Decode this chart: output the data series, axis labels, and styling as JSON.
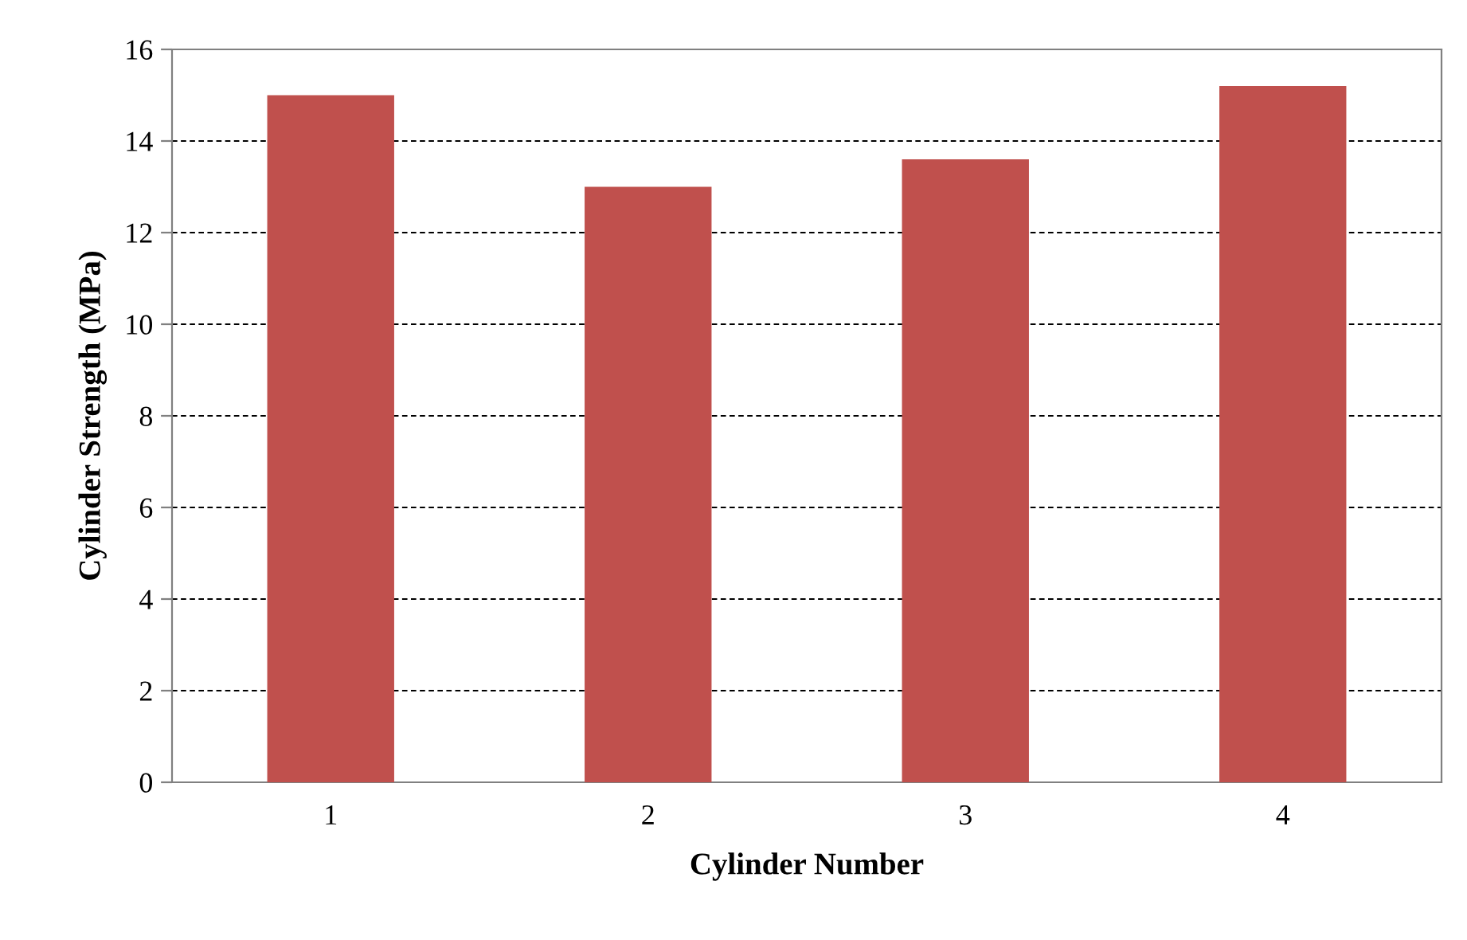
{
  "chart_data": {
    "type": "bar",
    "xlabel": "Cylinder Number",
    "ylabel": "Cylinder Strength (MPa)",
    "categories": [
      "1",
      "2",
      "3",
      "4"
    ],
    "values": [
      15.0,
      13.0,
      13.6,
      15.2
    ],
    "color": "#c0504d",
    "ylim": [
      0,
      16
    ],
    "yticks": [
      0,
      2,
      4,
      6,
      8,
      10,
      12,
      14,
      16
    ],
    "grid": "y"
  }
}
